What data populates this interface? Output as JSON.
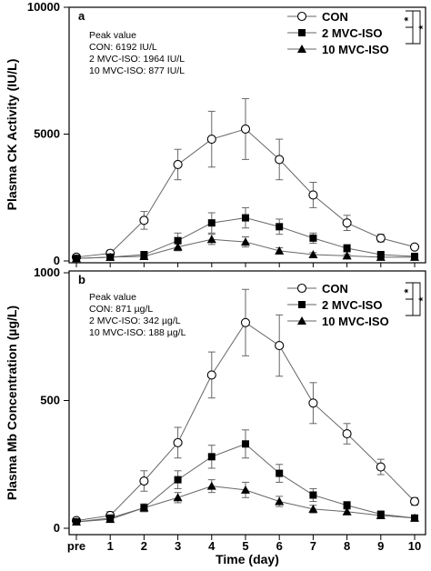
{
  "chart_data": [
    {
      "panel": "a",
      "type": "line",
      "ylabel": "Plasma CK Activity (IU/L)",
      "ylim": [
        0,
        10000
      ],
      "yticks": [
        "0",
        "5000",
        "10000"
      ],
      "categories": [
        "pre",
        "1",
        "2",
        "3",
        "4",
        "5",
        "6",
        "7",
        "8",
        "9",
        "10"
      ],
      "notes": [
        "Peak value",
        "CON: 6192 IU/L",
        "2 MVC-ISO: 1964 IU/L",
        "10 MVC-ISO: 877 IU/L"
      ],
      "legend_position": "top-right",
      "significance": [
        "*",
        "*"
      ],
      "series": [
        {
          "name": "CON",
          "marker": "open-circle",
          "values": [
            150,
            300,
            1600,
            3800,
            4800,
            5200,
            4000,
            2600,
            1500,
            900,
            550
          ],
          "errors": [
            80,
            120,
            350,
            600,
            1100,
            1200,
            800,
            500,
            300,
            150,
            100
          ]
        },
        {
          "name": "2 MVC-ISO",
          "marker": "filled-square",
          "values": [
            100,
            150,
            250,
            800,
            1500,
            1700,
            1350,
            900,
            500,
            250,
            180
          ],
          "errors": [
            50,
            60,
            80,
            300,
            400,
            400,
            300,
            200,
            150,
            80,
            60
          ]
        },
        {
          "name": "10 MVC-ISO",
          "marker": "filled-triangle",
          "values": [
            100,
            150,
            180,
            550,
            850,
            750,
            400,
            250,
            200,
            150,
            150
          ],
          "errors": [
            40,
            50,
            60,
            150,
            200,
            200,
            120,
            80,
            60,
            50,
            50
          ]
        }
      ]
    },
    {
      "panel": "b",
      "type": "line",
      "ylabel": "Plasma Mb Concentration (µg/L)",
      "xlabel": "Time (day)",
      "ylim": [
        0,
        1000
      ],
      "yticks": [
        "0",
        "500",
        "1000"
      ],
      "categories": [
        "pre",
        "1",
        "2",
        "3",
        "4",
        "5",
        "6",
        "7",
        "8",
        "9",
        "10"
      ],
      "notes": [
        "Peak value",
        "CON: 871 µg/L",
        "2 MVC-ISO: 342 µg/L",
        "10 MVC-ISO: 188 µg/L"
      ],
      "legend_position": "top-right",
      "significance": [
        "*",
        "*"
      ],
      "series": [
        {
          "name": "CON",
          "marker": "open-circle",
          "values": [
            30,
            50,
            185,
            335,
            600,
            805,
            715,
            490,
            370,
            240,
            105
          ],
          "errors": [
            10,
            15,
            40,
            60,
            90,
            130,
            120,
            80,
            40,
            30,
            15
          ]
        },
        {
          "name": "2 MVC-ISO",
          "marker": "filled-square",
          "values": [
            25,
            40,
            80,
            190,
            280,
            330,
            215,
            130,
            90,
            55,
            40
          ],
          "errors": [
            8,
            10,
            15,
            35,
            45,
            55,
            35,
            25,
            15,
            10,
            8
          ]
        },
        {
          "name": "10 MVC-ISO",
          "marker": "filled-triangle",
          "values": [
            25,
            35,
            80,
            120,
            165,
            150,
            105,
            75,
            65,
            50,
            40
          ],
          "errors": [
            8,
            10,
            15,
            20,
            25,
            30,
            20,
            15,
            10,
            10,
            8
          ]
        }
      ]
    }
  ]
}
